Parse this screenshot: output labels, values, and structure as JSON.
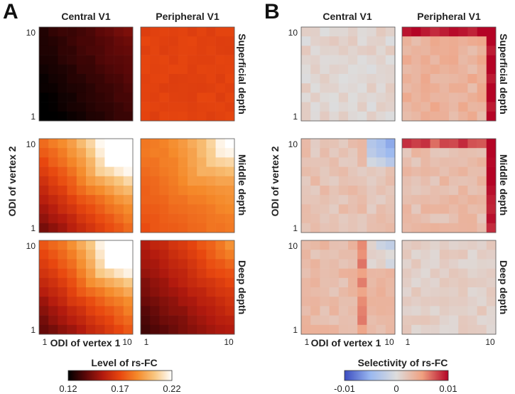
{
  "panels": {
    "A": {
      "letter": "A",
      "col_titles": [
        "Central V1",
        "Peripheral V1"
      ],
      "row_titles": [
        "Superficial depth",
        "Middle depth",
        "Deep depth"
      ],
      "ylabel": "ODI of vertex 2",
      "xlabel": "ODI of vertex 1",
      "colorbar": {
        "label": "Level of rs-FC",
        "ticks": [
          "0.12",
          "0.17",
          "0.22"
        ],
        "min": 0.12,
        "max": 0.22,
        "colormap": "hot",
        "colors": [
          "#000000",
          "#5a0808",
          "#b21a0e",
          "#e8470f",
          "#f58a2a",
          "#f8c680",
          "#ffffff"
        ]
      }
    },
    "B": {
      "letter": "B",
      "col_titles": [
        "Central V1",
        "Peripheral V1"
      ],
      "row_titles": [
        "Superficial depth",
        "Middle depth",
        "Deep depth"
      ],
      "ylabel": "ODI of vertex 2",
      "xlabel": "ODI of vertex 1",
      "colorbar": {
        "label": "Selectivity of rs-FC",
        "ticks": [
          "-0.01",
          "0",
          "0.01"
        ],
        "min": -0.01,
        "max": 0.01,
        "colormap": "diverging",
        "colors": [
          "#3b4cc0",
          "#9ab8f0",
          "#dddddd",
          "#f0a080",
          "#b40426"
        ]
      }
    }
  },
  "axis_ticks": {
    "low": "1",
    "high": "10"
  },
  "chart_data": [
    {
      "type": "heatmap",
      "panel": "A",
      "x_range": [
        1,
        10
      ],
      "y_range": [
        1,
        10
      ],
      "grid_size": 10,
      "cells": [
        {
          "column": "Central V1",
          "row": "Superficial depth",
          "base": 0.118,
          "gx": 0.0015,
          "gy": 0.001,
          "corner": 0.002,
          "noise": 0.002
        },
        {
          "column": "Peripheral V1",
          "row": "Superficial depth",
          "base": 0.168,
          "gx": 0.0,
          "gy": 0.0,
          "corner": 0.0,
          "noise": 0.003
        },
        {
          "column": "Central V1",
          "row": "Middle depth",
          "base": 0.143,
          "gx": 0.004,
          "gy": 0.004,
          "corner": 0.05,
          "noise": 0.002
        },
        {
          "column": "Peripheral V1",
          "row": "Middle depth",
          "base": 0.172,
          "gx": 0.0012,
          "gy": 0.0012,
          "corner": 0.035,
          "noise": 0.002
        },
        {
          "column": "Central V1",
          "row": "Deep depth",
          "base": 0.138,
          "gx": 0.004,
          "gy": 0.004,
          "corner": 0.06,
          "noise": 0.002
        },
        {
          "column": "Peripheral V1",
          "row": "Deep depth",
          "base": 0.132,
          "gx": 0.0025,
          "gy": 0.0025,
          "corner": 0.012,
          "noise": 0.002
        }
      ]
    },
    {
      "type": "heatmap",
      "panel": "B",
      "x_range": [
        1,
        10
      ],
      "y_range": [
        1,
        10
      ],
      "grid_size": 10,
      "cells": [
        {
          "column": "Central V1",
          "row": "Superficial depth",
          "base": 0.0008,
          "edge_right": 0.0,
          "edge_top": 0.0,
          "tr_blue": 0.0,
          "cross_x": -1,
          "noise": 0.0012
        },
        {
          "column": "Peripheral V1",
          "row": "Superficial depth",
          "base": 0.0035,
          "edge_right": 0.008,
          "edge_top": 0.007,
          "tr_blue": 0.0,
          "cross_x": -1,
          "noise": 0.0012
        },
        {
          "column": "Central V1",
          "row": "Middle depth",
          "base": 0.0022,
          "edge_right": 0.0,
          "edge_top": 0.0,
          "tr_blue": -0.0075,
          "cross_x": -1,
          "noise": 0.0012
        },
        {
          "column": "Peripheral V1",
          "row": "Middle depth",
          "base": 0.0026,
          "edge_right": 0.0075,
          "edge_top": 0.0065,
          "tr_blue": 0.0,
          "cross_x": -1,
          "noise": 0.0012
        },
        {
          "column": "Central V1",
          "row": "Deep depth",
          "base": 0.0028,
          "edge_right": 0.0,
          "edge_top": 0.0,
          "tr_blue": -0.004,
          "cross_x": 6,
          "noise": 0.0012
        },
        {
          "column": "Peripheral V1",
          "row": "Deep depth",
          "base": 0.0012,
          "edge_right": 0.0,
          "edge_top": 0.0,
          "tr_blue": 0.0,
          "cross_x": -1,
          "noise": 0.001
        }
      ]
    }
  ]
}
